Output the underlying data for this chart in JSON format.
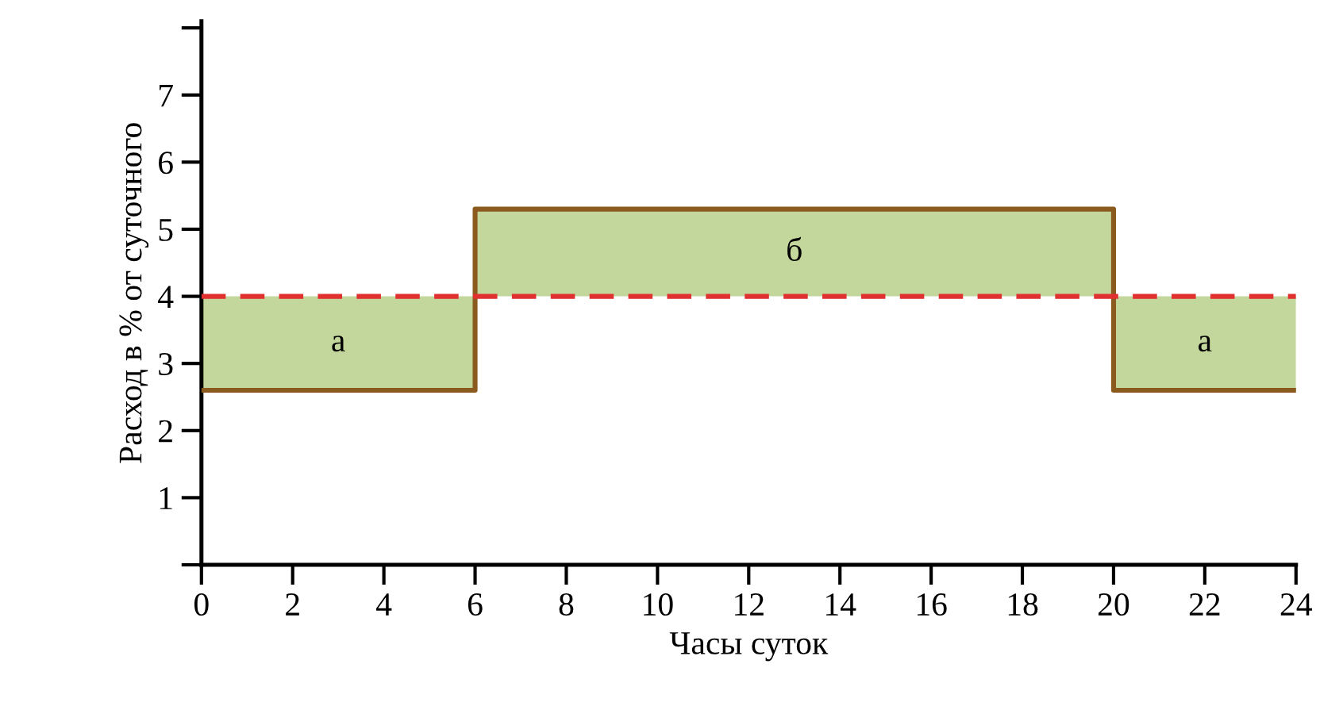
{
  "chart_data": {
    "type": "step",
    "xlabel": "Часы суток",
    "ylabel": "Расход в % от суточного",
    "series": [
      {
        "color": "#8b5a1e",
        "x": [
          0,
          6,
          20,
          24
        ],
        "values": [
          2.6,
          5.3,
          2.6,
          2.6
        ],
        "lower": [
          2.6,
          4,
          2.6,
          2.6
        ],
        "upper": [
          4,
          5.3,
          4,
          4
        ]
      }
    ],
    "ref_lines": [
      {
        "axis": "y",
        "value": 4,
        "color": "#e03030",
        "line_style": "dashed"
      }
    ],
    "annotations": [
      "а",
      "б",
      "а"
    ],
    "xlim": [
      0,
      24
    ],
    "ylim": [
      0,
      8.1
    ],
    "xticks": [
      0,
      2,
      4,
      6,
      8,
      10,
      12,
      14,
      16,
      18,
      20,
      22,
      24
    ],
    "yticks": [
      {
        "value": 0,
        "label": null
      },
      1,
      2,
      3,
      4,
      5,
      6,
      7,
      {
        "value": 8,
        "label": null
      }
    ],
    "grid": false
  }
}
